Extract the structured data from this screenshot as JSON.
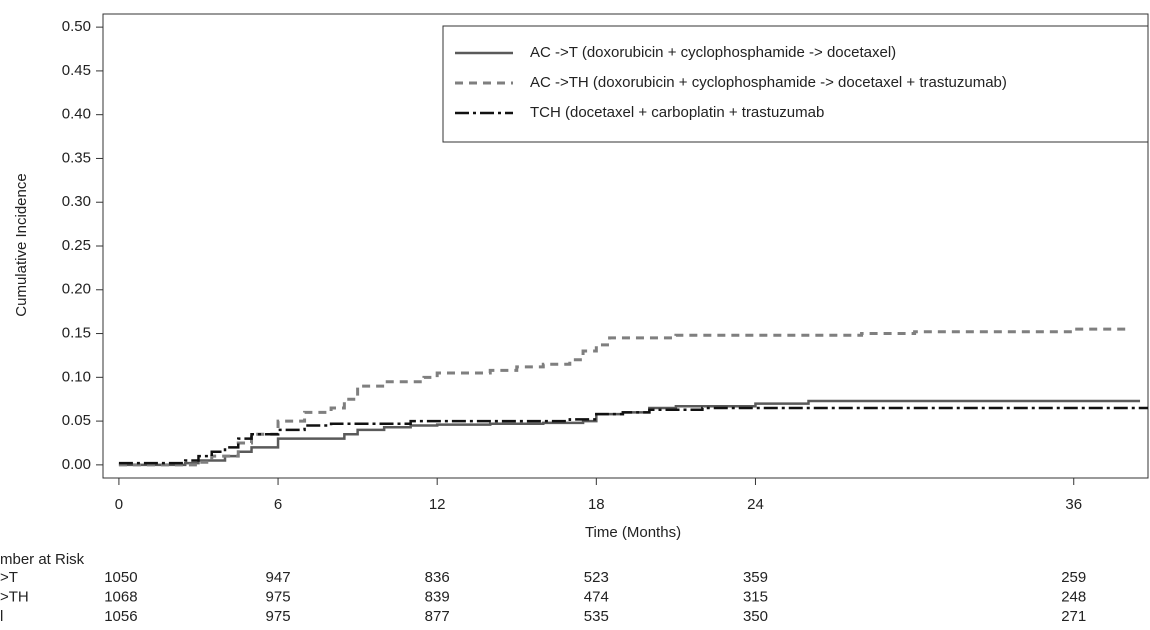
{
  "chart_data": {
    "type": "step",
    "y_label": "Cumulative Incidence",
    "x_label": "Time (Months)",
    "xlim": [
      -0.6,
      38.8
    ],
    "ylim": [
      -0.015,
      0.515
    ],
    "xticks": [
      0,
      6,
      12,
      18,
      24,
      36
    ],
    "yticks": [
      {
        "value": 0,
        "label": "0.00"
      },
      0.05,
      {
        "value": 0.1,
        "label": "0.10"
      },
      0.15,
      {
        "value": 0.2,
        "label": "0.20"
      },
      0.25,
      {
        "value": 0.3,
        "label": "0.30"
      },
      0.35,
      {
        "value": 0.4,
        "label": "0.40"
      },
      0.45,
      {
        "value": 0.5,
        "label": "0.50"
      }
    ],
    "grid": false,
    "legend": "top-right",
    "series": [
      {
        "name": "AC ->T (doxorubicin + cyclophosphamide -> docetaxel)",
        "color": "#5a5a5a",
        "line_style": "solid",
        "x": [
          0,
          2.5,
          3,
          4,
          4.5,
          5,
          6,
          8.5,
          9,
          10,
          11,
          12,
          14,
          16,
          17.5,
          18,
          19,
          20,
          21,
          24,
          26,
          38.5
        ],
        "values": [
          0,
          0.002,
          0.005,
          0.01,
          0.015,
          0.02,
          0.03,
          0.035,
          0.04,
          0.043,
          0.045,
          0.046,
          0.047,
          0.048,
          0.05,
          0.058,
          0.06,
          0.065,
          0.067,
          0.07,
          0.073,
          0.073
        ]
      },
      {
        "name": "AC ->TH (doxorubicin + cyclophosphamide -> docetaxel + trastuzumab)",
        "color": "#7f7f7f",
        "line_style": "dashed",
        "x": [
          0,
          3,
          3.5,
          4.5,
          5,
          6,
          7,
          8,
          8.5,
          9,
          10,
          11.5,
          12,
          14,
          15,
          16,
          17,
          17.5,
          18,
          18.5,
          21,
          28,
          30,
          36,
          38
        ],
        "values": [
          0,
          0.003,
          0.01,
          0.025,
          0.035,
          0.05,
          0.06,
          0.065,
          0.075,
          0.09,
          0.095,
          0.1,
          0.105,
          0.108,
          0.112,
          0.115,
          0.12,
          0.13,
          0.137,
          0.145,
          0.148,
          0.15,
          0.152,
          0.155,
          0.158
        ]
      },
      {
        "name": "TCH (docetaxel + carboplatin + trastuzumab",
        "color": "#111111",
        "line_style": "dashdot",
        "x": [
          0,
          2.5,
          3,
          3.5,
          4,
          4.5,
          5,
          6,
          7,
          8,
          11,
          17,
          18,
          19,
          20,
          22,
          38.8
        ],
        "values": [
          0.002,
          0.005,
          0.01,
          0.015,
          0.02,
          0.03,
          0.035,
          0.04,
          0.045,
          0.047,
          0.05,
          0.052,
          0.058,
          0.06,
          0.063,
          0.065,
          0.065
        ]
      }
    ],
    "risk_table": {
      "title": "mber at Risk",
      "rows": [
        {
          "label": ">T",
          "counts": [
            1050,
            947,
            836,
            523,
            359,
            259
          ]
        },
        {
          "label": ">TH",
          "counts": [
            1068,
            975,
            839,
            474,
            315,
            248
          ]
        },
        {
          "label": "l",
          "counts": [
            1056,
            975,
            877,
            535,
            350,
            271
          ]
        }
      ]
    }
  }
}
